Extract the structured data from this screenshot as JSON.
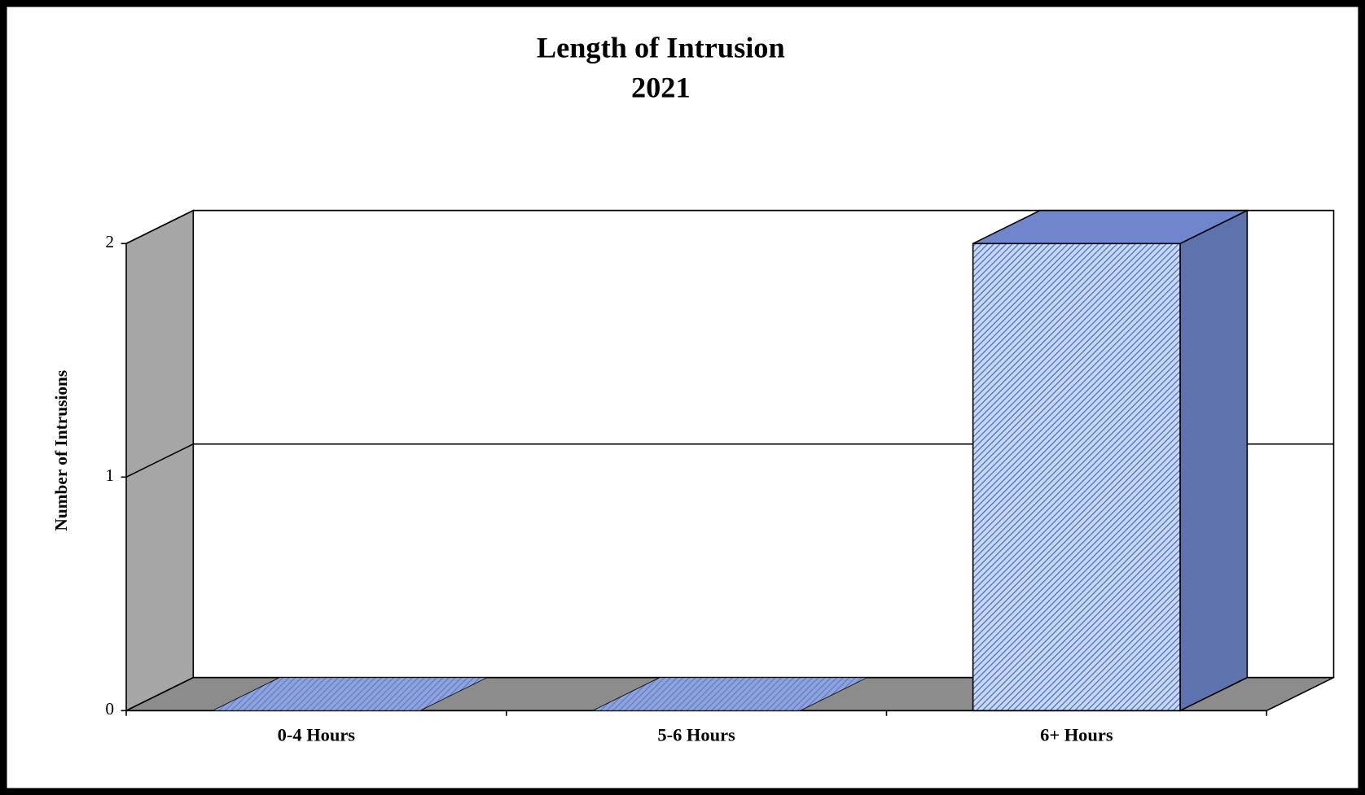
{
  "chart_data": {
    "type": "bar3d",
    "title": "Length of Intrusion",
    "subtitle": "2021",
    "y_label": "Number of Intrusions",
    "categories": [
      "0-4 Hours",
      "5-6 Hours",
      "6+ Hours"
    ],
    "values": [
      0,
      0,
      2
    ],
    "color": "#6f86cc",
    "ylim": [
      0,
      2
    ],
    "yticks": [
      0,
      1,
      2
    ],
    "grid": true
  }
}
